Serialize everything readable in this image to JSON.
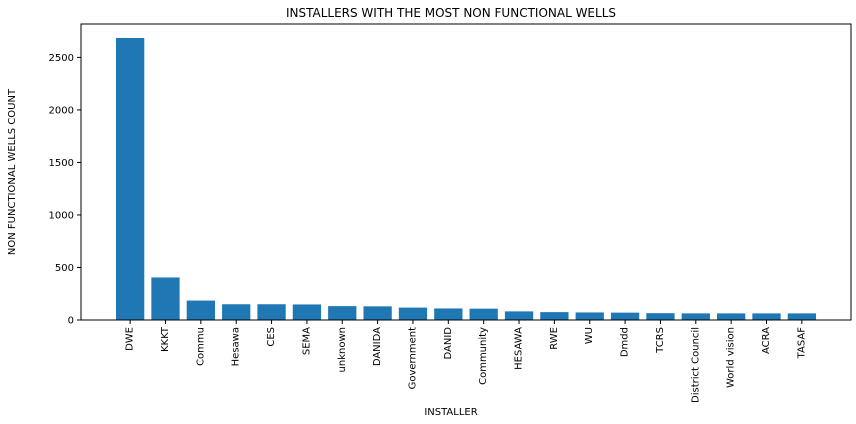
{
  "chart_data": {
    "type": "bar",
    "title": "INSTALLERS WITH THE MOST NON FUNCTIONAL WELLS",
    "xlabel": "INSTALLER",
    "ylabel": "NON FUNCTIONAL WELLS COUNT",
    "categories": [
      "DWE",
      "KKKT",
      "Commu",
      "Hesawa",
      "CES",
      "SEMA",
      "unknown",
      "DANIDA",
      "Government",
      "DANID",
      "Community",
      "HESAWA",
      "RWE",
      "WU",
      "Dmdd",
      "TCRS",
      "District Council",
      "World vision",
      "ACRA",
      "TASAF"
    ],
    "values": [
      2685,
      405,
      185,
      150,
      150,
      148,
      132,
      130,
      118,
      110,
      108,
      82,
      75,
      72,
      70,
      65,
      63,
      63,
      63,
      63
    ],
    "ylim": [
      0,
      2818
    ],
    "yticks": [
      0,
      500,
      1000,
      1500,
      2000,
      2500
    ],
    "bar_color": "#1f77b4",
    "grid": false
  }
}
